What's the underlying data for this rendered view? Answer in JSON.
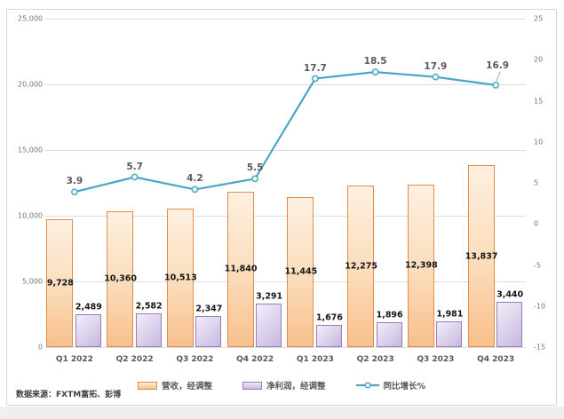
{
  "chart_data": {
    "type": "combo",
    "categories": [
      "Q1 2022",
      "Q2 2022",
      "Q3 2022",
      "Q4 2022",
      "Q1 2023",
      "Q2 2023",
      "Q3 2023",
      "Q4 2023"
    ],
    "series": [
      {
        "name": "营收，经调整",
        "type": "bar",
        "axis": "left",
        "values": [
          9728,
          10360,
          10513,
          11840,
          11445,
          12275,
          12398,
          13837
        ],
        "labels": [
          "9,728",
          "10,360",
          "10,513",
          "11,840",
          "11,445",
          "12,275",
          "12,398",
          "13,837"
        ],
        "label_position": "inside-center"
      },
      {
        "name": "净利润，经调整",
        "type": "bar",
        "axis": "left",
        "values": [
          2489,
          2582,
          2347,
          3291,
          1676,
          1896,
          1981,
          3440
        ],
        "labels": [
          "2,489",
          "2,582",
          "2,347",
          "3,291",
          "1,676",
          "1,896",
          "1,981",
          "3,440"
        ],
        "label_position": "outside-top"
      },
      {
        "name": "同比增长%",
        "type": "line",
        "axis": "right",
        "values": [
          3.9,
          5.7,
          4.2,
          5.5,
          17.7,
          18.5,
          17.9,
          16.9
        ],
        "labels": [
          "3.9",
          "5.7",
          "4.2",
          "5.5",
          "17.7",
          "18.5",
          "17.9",
          "16.9"
        ]
      }
    ],
    "left_axis": {
      "min": 0,
      "max": 25000,
      "step": 5000,
      "tick_labels": [
        "0",
        "5,000",
        "10,000",
        "15,000",
        "20,000",
        "25,000"
      ]
    },
    "right_axis": {
      "min": -15,
      "max": 25,
      "step": 5,
      "tick_labels": [
        "-15",
        "-10",
        "-5",
        "0",
        "5",
        "10",
        "15",
        "20",
        "25"
      ]
    },
    "grid": true,
    "legend_position": "bottom",
    "source": "数据来源：FXTM富拓、彭博"
  },
  "colors": {
    "revenue_fill_top": "#fdf0e1",
    "revenue_fill_bottom": "#f8c08c",
    "revenue_border": "#e08c4a",
    "profit_fill_top": "#f2eef9",
    "profit_fill_bottom": "#c9b6df",
    "profit_border": "#9b7cb8",
    "line": "#4ba6c6",
    "marker_fill": "#ffffff",
    "grid": "#dcdcdc",
    "axis_text": "#737373",
    "category_text": "#595959",
    "bar_label_text": "#151515",
    "line_label_text": "#595959",
    "panel_border": "#d8d8d8",
    "leader_line": "#a6a6a6"
  }
}
